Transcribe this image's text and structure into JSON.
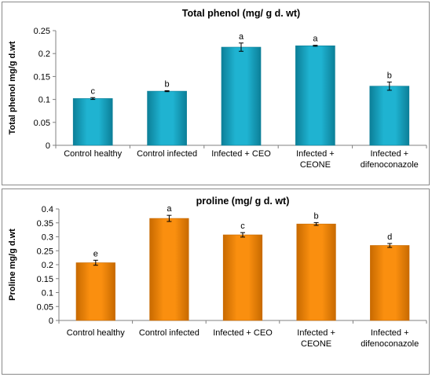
{
  "chart_data": [
    {
      "type": "bar",
      "title": "Total phenol (mg/ g d. wt)",
      "ylabel": "Total phenol mg/g d.wt",
      "xlabel": "",
      "categories": [
        [
          "Control healthy"
        ],
        [
          "Control infected"
        ],
        [
          "Infected + CEO"
        ],
        [
          "Infected +",
          "CEONE"
        ],
        [
          "Infected +",
          "difenoconazole"
        ]
      ],
      "values": [
        0.102,
        0.118,
        0.214,
        0.217,
        0.129
      ],
      "errors": [
        0.002,
        0.001,
        0.009,
        0.001,
        0.009
      ],
      "significance": [
        "c",
        "b",
        "a",
        "a",
        "b"
      ],
      "ylim": [
        0,
        0.25
      ],
      "yticks": [
        0,
        0.05,
        0.1,
        0.15,
        0.2,
        0.25
      ],
      "ytick_labels": [
        "0",
        "0.05",
        "0.1",
        "0.15",
        "0.2",
        "0.25"
      ],
      "bar_color": "#1fb3d1",
      "bar_edge": "#0c7f98"
    },
    {
      "type": "bar",
      "title": "proline (mg/ g d. wt)",
      "ylabel": "Proline mg/g d.wt",
      "xlabel": "",
      "categories": [
        [
          "Control healthy"
        ],
        [
          "Control infected"
        ],
        [
          "Infected + CEO"
        ],
        [
          "Infected +",
          "CEONE"
        ],
        [
          "Infected +",
          "difenoconazole"
        ]
      ],
      "values": [
        0.207,
        0.366,
        0.307,
        0.346,
        0.269
      ],
      "errors": [
        0.009,
        0.011,
        0.008,
        0.005,
        0.007
      ],
      "significance": [
        "e",
        "a",
        "c",
        "b",
        "d"
      ],
      "ylim": [
        0,
        0.4
      ],
      "yticks": [
        0,
        0.05,
        0.1,
        0.15,
        0.2,
        0.25,
        0.3,
        0.35,
        0.4
      ],
      "ytick_labels": [
        "0",
        "0.05",
        "0.1",
        "0.15",
        "0.2",
        "0.25",
        "0.3",
        "0.35",
        "0.4"
      ],
      "bar_color": "#fa8f0f",
      "bar_edge": "#c86a00"
    }
  ]
}
